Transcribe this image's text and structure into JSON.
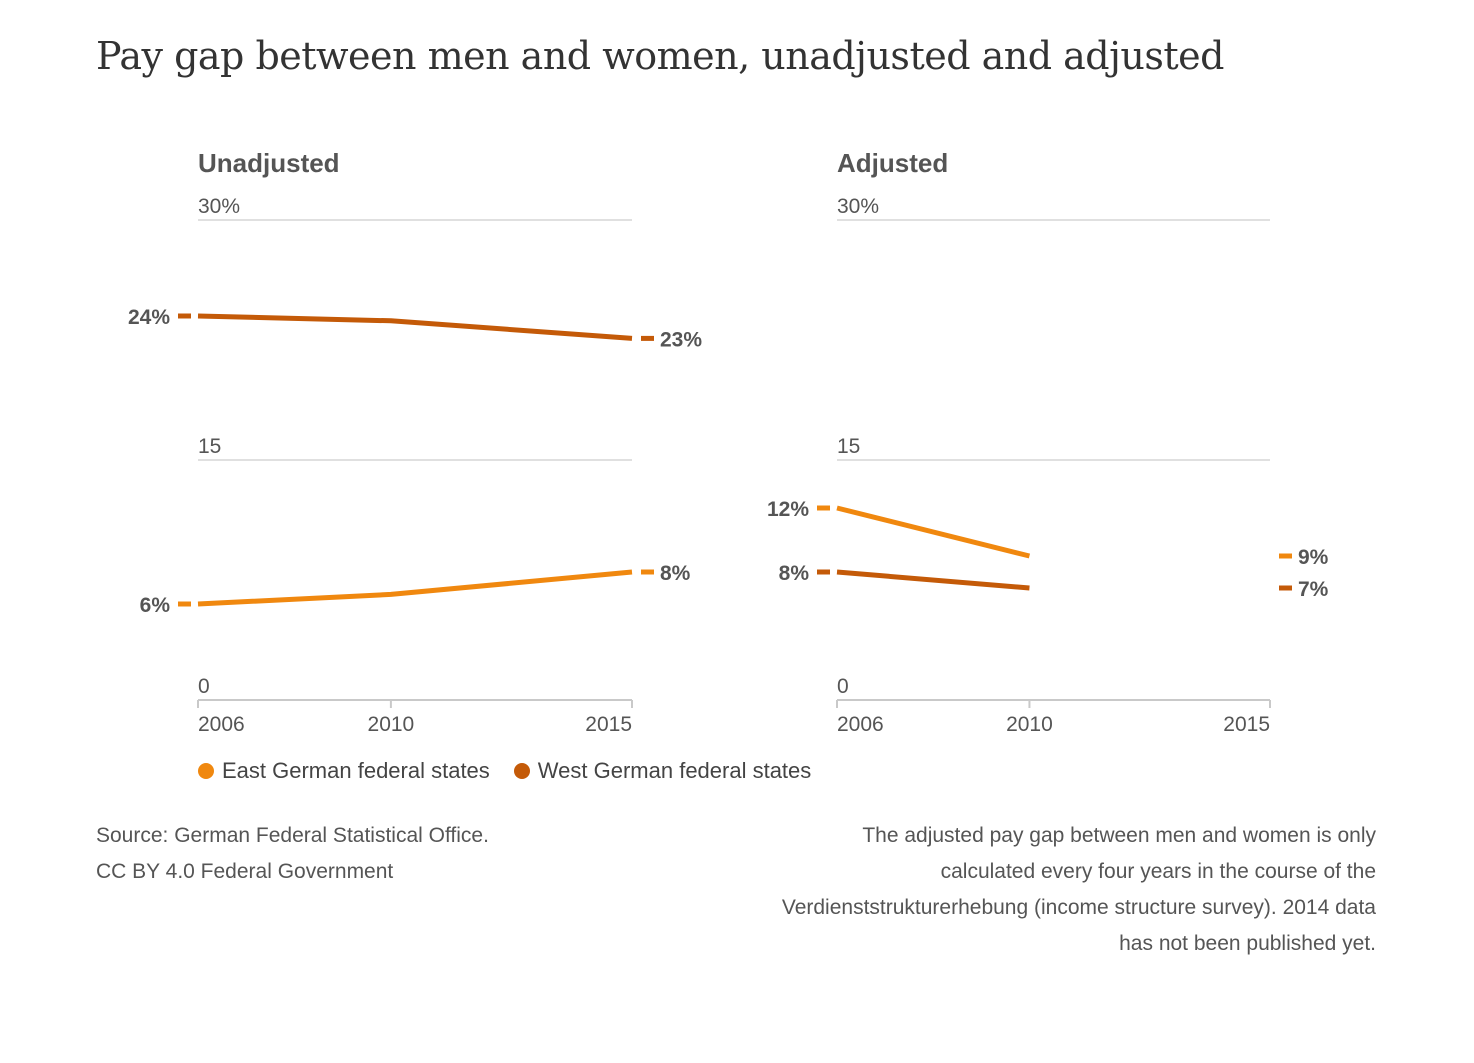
{
  "title": "Pay gap between men and women, unadjusted and adjusted",
  "colors": {
    "east": "#f0880f",
    "west": "#c45a08"
  },
  "legend": [
    {
      "label": "East German federal states",
      "color": "#f0880f"
    },
    {
      "label": "West German federal states",
      "color": "#c45a08"
    }
  ],
  "chart_data": [
    {
      "type": "line",
      "title": "Unadjusted",
      "x": [
        "2006",
        "2010",
        "2015"
      ],
      "ylim": [
        0,
        30
      ],
      "yticks": [
        "30%",
        "15",
        "0"
      ],
      "series": [
        {
          "name": "West German federal states",
          "values": [
            24,
            23.7,
            22.6
          ],
          "start_label": "24%",
          "end_label": "23%"
        },
        {
          "name": "East German federal states",
          "values": [
            6,
            6.6,
            8
          ],
          "start_label": "6%",
          "end_label": "8%"
        }
      ]
    },
    {
      "type": "line",
      "title": "Adjusted",
      "x": [
        "2006",
        "2010",
        "2015"
      ],
      "ylim": [
        0,
        30
      ],
      "yticks": [
        "30%",
        "15",
        "0"
      ],
      "series": [
        {
          "name": "East German federal states",
          "values": [
            12,
            9,
            null
          ],
          "start_label": "12%",
          "end_value": 9,
          "end_label": "9%"
        },
        {
          "name": "West German federal states",
          "values": [
            8,
            7,
            null
          ],
          "start_label": "8%",
          "end_value": 7,
          "end_label": "7%"
        }
      ]
    }
  ],
  "source": [
    "Source: German Federal Statistical Office.",
    "CC BY 4.0 Federal Government"
  ],
  "note": "The adjusted pay gap between men and women is only calculated every four years in the course of the Verdienststrukturerhebung (income structure survey). 2014 data has not been published yet."
}
